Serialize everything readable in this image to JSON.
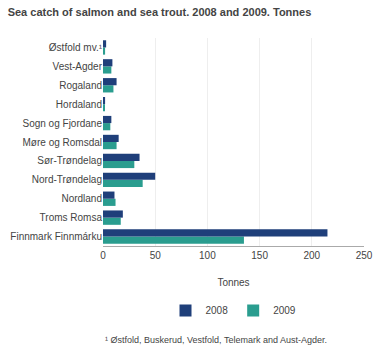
{
  "chart_data": {
    "type": "bar",
    "orientation": "horizontal",
    "title": "Sea catch of salmon and sea trout. 2008 and 2009. Tonnes",
    "xlabel": "Tonnes",
    "categories": [
      "Finnmark Finnmárku",
      "Troms Romsa",
      "Nordland",
      "Nord-Trøndelag",
      "Sør-Trøndelag",
      "Møre og Romsdal",
      "Sogn og Fjordane",
      "Hordaland",
      "Rogaland",
      "Vest-Agder",
      "Østfold mv.¹"
    ],
    "series": [
      {
        "name": "2008",
        "color": "#1f3f7a",
        "values": [
          215,
          19,
          11,
          50,
          35,
          15,
          8,
          2,
          13,
          9,
          3
        ]
      },
      {
        "name": "2009",
        "color": "#2a9d8f",
        "values": [
          135,
          17,
          12,
          38,
          30,
          13,
          7,
          1,
          10,
          8,
          2
        ]
      }
    ],
    "xlim": [
      0,
      250
    ],
    "xticks": [
      0,
      50,
      100,
      150,
      200,
      250
    ],
    "grid": true,
    "legend": "bottom",
    "annotations": [
      "¹ Østfold, Buskerud, Vestfold, Telemark and Aust-Agder."
    ]
  }
}
